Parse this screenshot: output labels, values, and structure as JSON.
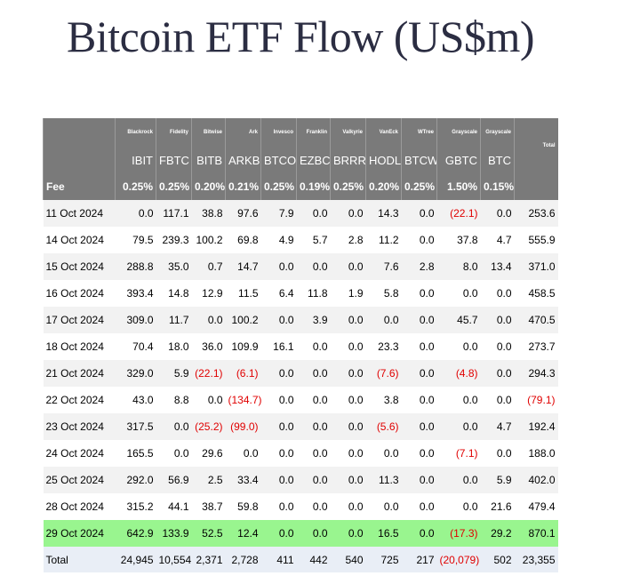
{
  "title": "Bitcoin ETF Flow (US$m)",
  "colors": {
    "header_bg": "#7a7a7a",
    "highlight_row": "#99f58f",
    "negative_text": "#e00000",
    "total_row_bg": "#e9eef6"
  },
  "chart_data": {
    "type": "table",
    "title": "Bitcoin ETF Flow (US$m)",
    "fee_label": "Fee",
    "total_label": "Total",
    "columns": [
      {
        "issuer": "Blackrock",
        "ticker": "IBIT",
        "fee": "0.25%"
      },
      {
        "issuer": "Fidelity",
        "ticker": "FBTC",
        "fee": "0.25%"
      },
      {
        "issuer": "Bitwise",
        "ticker": "BITB",
        "fee": "0.20%"
      },
      {
        "issuer": "Ark",
        "ticker": "ARKB",
        "fee": "0.21%"
      },
      {
        "issuer": "Invesco",
        "ticker": "BTCO",
        "fee": "0.25%"
      },
      {
        "issuer": "Franklin",
        "ticker": "EZBC",
        "fee": "0.19%"
      },
      {
        "issuer": "Valkyrie",
        "ticker": "BRRR",
        "fee": "0.25%"
      },
      {
        "issuer": "VanEck",
        "ticker": "HODL",
        "fee": "0.20%"
      },
      {
        "issuer": "WTree",
        "ticker": "BTCW",
        "fee": "0.25%"
      },
      {
        "issuer": "Grayscale",
        "ticker": "GBTC",
        "fee": "1.50%"
      },
      {
        "issuer": "Grayscale",
        "ticker": "BTC",
        "fee": "0.15%"
      }
    ],
    "rows": [
      {
        "date": "11 Oct 2024",
        "values": [
          "0.0",
          "117.1",
          "38.8",
          "97.6",
          "7.9",
          "0.0",
          "0.0",
          "14.3",
          "0.0",
          "(22.1)",
          "0.0"
        ],
        "total": "253.6"
      },
      {
        "date": "14 Oct 2024",
        "values": [
          "79.5",
          "239.3",
          "100.2",
          "69.8",
          "4.9",
          "5.7",
          "2.8",
          "11.2",
          "0.0",
          "37.8",
          "4.7"
        ],
        "total": "555.9"
      },
      {
        "date": "15 Oct 2024",
        "values": [
          "288.8",
          "35.0",
          "0.7",
          "14.7",
          "0.0",
          "0.0",
          "0.0",
          "7.6",
          "2.8",
          "8.0",
          "13.4"
        ],
        "total": "371.0"
      },
      {
        "date": "16 Oct 2024",
        "values": [
          "393.4",
          "14.8",
          "12.9",
          "11.5",
          "6.4",
          "11.8",
          "1.9",
          "5.8",
          "0.0",
          "0.0",
          "0.0"
        ],
        "total": "458.5"
      },
      {
        "date": "17 Oct 2024",
        "values": [
          "309.0",
          "11.7",
          "0.0",
          "100.2",
          "0.0",
          "3.9",
          "0.0",
          "0.0",
          "0.0",
          "45.7",
          "0.0"
        ],
        "total": "470.5"
      },
      {
        "date": "18 Oct 2024",
        "values": [
          "70.4",
          "18.0",
          "36.0",
          "109.9",
          "16.1",
          "0.0",
          "0.0",
          "23.3",
          "0.0",
          "0.0",
          "0.0"
        ],
        "total": "273.7"
      },
      {
        "date": "21 Oct 2024",
        "values": [
          "329.0",
          "5.9",
          "(22.1)",
          "(6.1)",
          "0.0",
          "0.0",
          "0.0",
          "(7.6)",
          "0.0",
          "(4.8)",
          "0.0"
        ],
        "total": "294.3"
      },
      {
        "date": "22 Oct 2024",
        "values": [
          "43.0",
          "8.8",
          "0.0",
          "(134.7)",
          "0.0",
          "0.0",
          "0.0",
          "3.8",
          "0.0",
          "0.0",
          "0.0"
        ],
        "total": "(79.1)"
      },
      {
        "date": "23 Oct 2024",
        "values": [
          "317.5",
          "0.0",
          "(25.2)",
          "(99.0)",
          "0.0",
          "0.0",
          "0.0",
          "(5.6)",
          "0.0",
          "0.0",
          "4.7"
        ],
        "total": "192.4"
      },
      {
        "date": "24 Oct 2024",
        "values": [
          "165.5",
          "0.0",
          "29.6",
          "0.0",
          "0.0",
          "0.0",
          "0.0",
          "0.0",
          "0.0",
          "(7.1)",
          "0.0"
        ],
        "total": "188.0"
      },
      {
        "date": "25 Oct 2024",
        "values": [
          "292.0",
          "56.9",
          "2.5",
          "33.4",
          "0.0",
          "0.0",
          "0.0",
          "11.3",
          "0.0",
          "0.0",
          "5.9"
        ],
        "total": "402.0"
      },
      {
        "date": "28 Oct 2024",
        "values": [
          "315.2",
          "44.1",
          "38.7",
          "59.8",
          "0.0",
          "0.0",
          "0.0",
          "0.0",
          "0.0",
          "0.0",
          "21.6"
        ],
        "total": "479.4"
      },
      {
        "date": "29 Oct 2024",
        "values": [
          "642.9",
          "133.9",
          "52.5",
          "12.4",
          "0.0",
          "0.0",
          "0.0",
          "16.5",
          "0.0",
          "(17.3)",
          "29.2"
        ],
        "total": "870.1",
        "highlight": true
      }
    ],
    "totals": {
      "label": "Total",
      "values": [
        "24,945",
        "10,554",
        "2,371",
        "2,728",
        "411",
        "442",
        "540",
        "725",
        "217",
        "(20,079)",
        "502"
      ],
      "total": "23,355"
    }
  }
}
